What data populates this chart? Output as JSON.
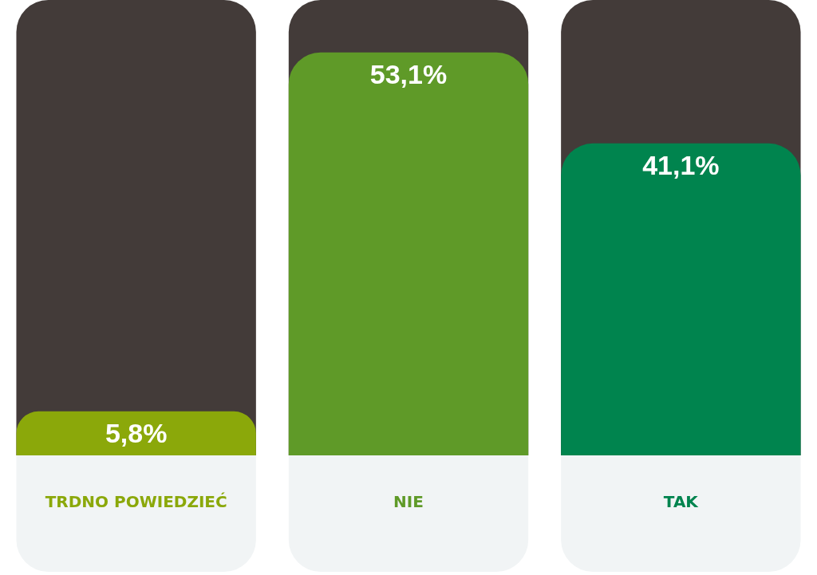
{
  "chart_data": {
    "type": "bar",
    "categories": [
      "TRDNO POWIEDZIEĆ",
      "NIE",
      "TAK"
    ],
    "values": [
      5.8,
      53.1,
      41.1
    ],
    "colors": [
      "#8ba80a",
      "#5f9a28",
      "#00844e"
    ],
    "value_labels": [
      "5,8%",
      "53,1%",
      "41,1%"
    ],
    "ylim": [
      0,
      60
    ],
    "grid": false,
    "legend": false,
    "tick_labels": "x"
  }
}
